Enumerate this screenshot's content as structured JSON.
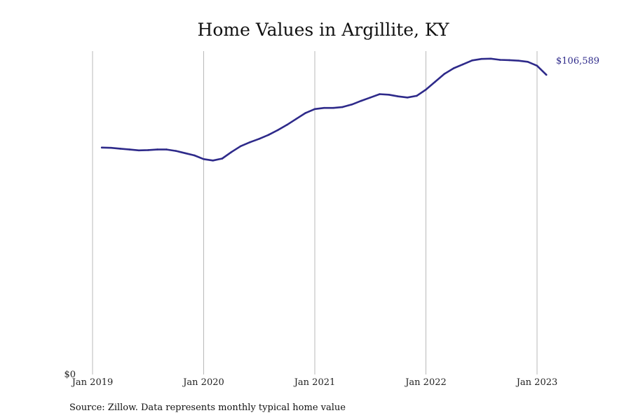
{
  "chart_data": {
    "type": "line",
    "title": "Home Values in Argillite, KY",
    "xlabel": "",
    "ylabel": "",
    "x_ticks": [
      "Jan 2019",
      "Jan 2020",
      "Jan 2021",
      "Jan 2022",
      "Jan 2023"
    ],
    "y_ticks": [
      "$0"
    ],
    "ylim": [
      0,
      115000
    ],
    "grid": "vertical",
    "end_label": "$106,589",
    "series_color": "#2e2a8a",
    "series": [
      {
        "name": "",
        "x": [
          "2019-02",
          "2019-03",
          "2019-04",
          "2019-05",
          "2019-06",
          "2019-07",
          "2019-08",
          "2019-09",
          "2019-10",
          "2019-11",
          "2019-12",
          "2020-01",
          "2020-02",
          "2020-03",
          "2020-04",
          "2020-05",
          "2020-06",
          "2020-07",
          "2020-08",
          "2020-09",
          "2020-10",
          "2020-11",
          "2020-12",
          "2021-01",
          "2021-02",
          "2021-03",
          "2021-04",
          "2021-05",
          "2021-06",
          "2021-07",
          "2021-08",
          "2021-09",
          "2021-10",
          "2021-11",
          "2021-12",
          "2022-01",
          "2022-02",
          "2022-03",
          "2022-04",
          "2022-05",
          "2022-06",
          "2022-07",
          "2022-08",
          "2022-09",
          "2022-10",
          "2022-11",
          "2022-12",
          "2023-01",
          "2023-02"
        ],
        "values": [
          80700,
          80600,
          80300,
          80000,
          79700,
          79800,
          80000,
          80000,
          79500,
          78700,
          77900,
          76600,
          76100,
          76800,
          79100,
          81200,
          82600,
          83800,
          85200,
          86900,
          88800,
          90900,
          93000,
          94400,
          94800,
          94800,
          95100,
          96000,
          97300,
          98500,
          99700,
          99500,
          98900,
          98500,
          99100,
          101300,
          104100,
          106900,
          108900,
          110300,
          111700,
          112200,
          112300,
          111900,
          111800,
          111600,
          111200,
          109800,
          106589
        ]
      }
    ],
    "source": "Source: Zillow. Data represents monthly typical home value"
  }
}
